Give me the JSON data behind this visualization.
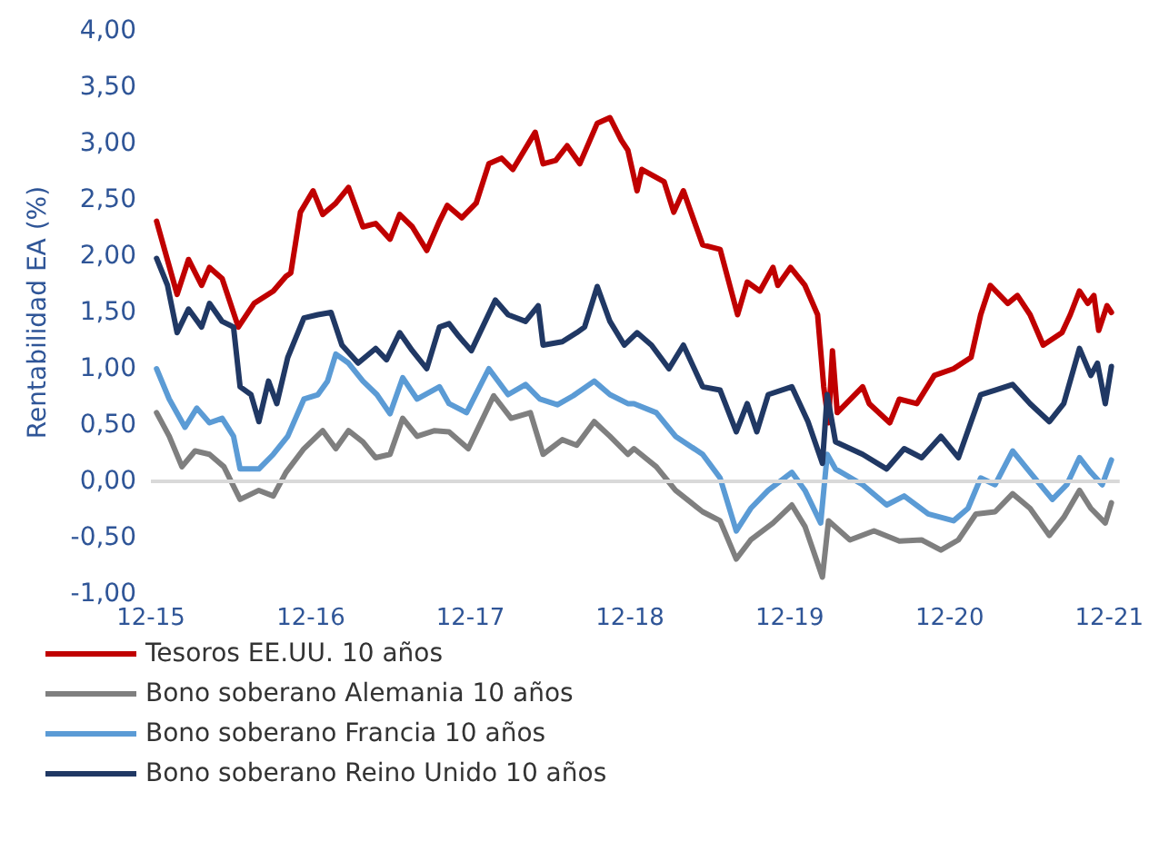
{
  "chart_data": {
    "type": "line",
    "ylabel": "Rentabilidad EA (%)",
    "legend": "bottom",
    "line_style": "solid",
    "grid": false,
    "xlim": [
      "2015-12-01",
      "2021-12-25"
    ],
    "xticks": [
      {
        "value": "2015-12-01",
        "label": "12-15"
      },
      {
        "value": "2016-12-01",
        "label": "12-16"
      },
      {
        "value": "2017-12-01",
        "label": "12-17"
      },
      {
        "value": "2018-12-01",
        "label": "12-18"
      },
      {
        "value": "2019-12-01",
        "label": "12-19"
      },
      {
        "value": "2020-12-01",
        "label": "12-20"
      },
      {
        "value": "2021-12-01",
        "label": "12-21"
      }
    ],
    "ylim": [
      -1,
      4
    ],
    "yticks": [
      {
        "value": -1,
        "label": "-1,00"
      },
      {
        "value": -0.5,
        "label": "-0,50"
      },
      {
        "value": 0,
        "label": "0,00"
      },
      {
        "value": 0.5,
        "label": "0,50"
      },
      {
        "value": 1,
        "label": "1,00"
      },
      {
        "value": 1.5,
        "label": "1,50"
      },
      {
        "value": 2,
        "label": "2,00"
      },
      {
        "value": 2.5,
        "label": "2,50"
      },
      {
        "value": 3,
        "label": "3,00"
      },
      {
        "value": 3.5,
        "label": "3,50"
      },
      {
        "value": 4,
        "label": "4,00"
      }
    ],
    "ref_lines": [
      {
        "axis": "y",
        "value": 0,
        "label": null,
        "color": "#d9d9d9"
      }
    ],
    "series": [
      {
        "name": "Tesoros EE.UU. 10 años",
        "color": "#c00000",
        "x": [
          "2015-12-14",
          "2016-01-30",
          "2016-02-25",
          "2016-03-26",
          "2016-04-13",
          "2016-05-12",
          "2016-06-18",
          "2016-07-24",
          "2016-09-06",
          "2016-10-05",
          "2016-10-16",
          "2016-11-07",
          "2016-12-06",
          "2016-12-28",
          "2017-01-27",
          "2017-02-25",
          "2017-03-30",
          "2017-04-28",
          "2017-05-31",
          "2017-06-22",
          "2017-07-21",
          "2017-08-23",
          "2017-09-21",
          "2017-10-09",
          "2017-11-11",
          "2017-12-14",
          "2018-01-12",
          "2018-02-10",
          "2018-03-08",
          "2018-04-28",
          "2018-05-16",
          "2018-06-14",
          "2018-07-10",
          "2018-08-08",
          "2018-09-17",
          "2018-10-16",
          "2018-11-11",
          "2018-11-26",
          "2018-12-17",
          "2018-12-28",
          "2019-02-17",
          "2019-03-11",
          "2019-04-02",
          "2019-05-16",
          "2019-06-25",
          "2019-08-04",
          "2019-08-26",
          "2019-09-24",
          "2019-10-24",
          "2019-11-04",
          "2019-12-03",
          "2020-01-05",
          "2020-02-03",
          "2020-02-17",
          "2020-02-28",
          "2020-03-08",
          "2020-03-19",
          "2020-05-16",
          "2020-05-31",
          "2020-07-17",
          "2020-08-08",
          "2020-09-17",
          "2020-10-27",
          "2020-12-10",
          "2021-01-19",
          "2021-02-10",
          "2021-03-04",
          "2021-04-13",
          "2021-05-05",
          "2021-06-03",
          "2021-07-03",
          "2021-08-15",
          "2021-09-03",
          "2021-09-24",
          "2021-10-13",
          "2021-10-27",
          "2021-11-07",
          "2021-11-26",
          "2021-12-06"
        ],
        "values": [
          2.31,
          1.66,
          1.97,
          1.74,
          1.9,
          1.8,
          1.37,
          1.58,
          1.69,
          1.82,
          1.85,
          2.39,
          2.58,
          2.37,
          2.47,
          2.61,
          2.26,
          2.29,
          2.15,
          2.37,
          2.26,
          2.05,
          2.31,
          2.45,
          2.34,
          2.47,
          2.82,
          2.87,
          2.77,
          3.1,
          2.82,
          2.85,
          2.98,
          2.82,
          3.18,
          3.23,
          3.03,
          2.94,
          2.58,
          2.77,
          2.66,
          2.39,
          2.58,
          2.1,
          2.06,
          1.48,
          1.77,
          1.69,
          1.9,
          1.74,
          1.9,
          1.74,
          1.48,
          0.84,
          0.52,
          1.16,
          0.61,
          0.84,
          0.69,
          0.52,
          0.73,
          0.69,
          0.94,
          1.0,
          1.1,
          1.48,
          1.74,
          1.58,
          1.65,
          1.48,
          1.21,
          1.32,
          1.48,
          1.69,
          1.58,
          1.65,
          1.34,
          1.56,
          1.5
        ]
      },
      {
        "name": "Bono soberano Alemania 10 años",
        "color": "#7f7f7f",
        "x": [
          "2015-12-14",
          "2016-01-12",
          "2016-02-10",
          "2016-03-11",
          "2016-04-13",
          "2016-05-16",
          "2016-06-22",
          "2016-08-04",
          "2016-09-06",
          "2016-10-05",
          "2016-11-15",
          "2016-12-28",
          "2017-01-27",
          "2017-02-25",
          "2017-03-30",
          "2017-04-28",
          "2017-05-31",
          "2017-06-29",
          "2017-08-01",
          "2017-09-10",
          "2017-10-13",
          "2017-11-26",
          "2018-01-23",
          "2018-03-04",
          "2018-04-17",
          "2018-05-16",
          "2018-06-29",
          "2018-08-01",
          "2018-09-10",
          "2018-10-16",
          "2018-11-26",
          "2018-12-10",
          "2019-01-30",
          "2019-03-15",
          "2019-05-16",
          "2019-06-25",
          "2019-08-01",
          "2019-09-03",
          "2019-10-24",
          "2019-12-06",
          "2020-01-05",
          "2020-02-14",
          "2020-02-28",
          "2020-04-17",
          "2020-06-11",
          "2020-08-08",
          "2020-09-28",
          "2020-11-11",
          "2020-12-21",
          "2021-01-30",
          "2021-03-15",
          "2021-04-24",
          "2021-06-03",
          "2021-07-17",
          "2021-08-19",
          "2021-09-24",
          "2021-10-20",
          "2021-11-22",
          "2021-12-06"
        ],
        "values": [
          0.61,
          0.4,
          0.13,
          0.27,
          0.24,
          0.13,
          -0.16,
          -0.08,
          -0.13,
          0.08,
          0.29,
          0.45,
          0.29,
          0.45,
          0.35,
          0.21,
          0.24,
          0.56,
          0.4,
          0.45,
          0.44,
          0.29,
          0.76,
          0.56,
          0.61,
          0.24,
          0.37,
          0.32,
          0.53,
          0.4,
          0.24,
          0.29,
          0.13,
          -0.08,
          -0.27,
          -0.35,
          -0.69,
          -0.52,
          -0.37,
          -0.21,
          -0.4,
          -0.85,
          -0.35,
          -0.52,
          -0.44,
          -0.53,
          -0.52,
          -0.61,
          -0.52,
          -0.29,
          -0.27,
          -0.11,
          -0.24,
          -0.48,
          -0.32,
          -0.08,
          -0.24,
          -0.37,
          -0.19
        ]
      },
      {
        "name": "Bono soberano Francia 10 años",
        "color": "#5b9bd5",
        "x": [
          "2015-12-14",
          "2016-01-12",
          "2016-02-17",
          "2016-03-15",
          "2016-04-13",
          "2016-05-12",
          "2016-06-07",
          "2016-06-22",
          "2016-08-04",
          "2016-09-06",
          "2016-10-09",
          "2016-11-15",
          "2016-12-17",
          "2017-01-08",
          "2017-01-27",
          "2017-02-25",
          "2017-03-30",
          "2017-05-01",
          "2017-05-31",
          "2017-06-29",
          "2017-08-01",
          "2017-09-21",
          "2017-10-13",
          "2017-11-22",
          "2018-01-12",
          "2018-02-25",
          "2018-04-06",
          "2018-05-09",
          "2018-06-18",
          "2018-07-24",
          "2018-09-10",
          "2018-10-16",
          "2018-11-26",
          "2018-12-10",
          "2019-01-30",
          "2019-03-15",
          "2019-05-16",
          "2019-06-25",
          "2019-08-01",
          "2019-09-03",
          "2019-10-13",
          "2019-12-06",
          "2020-01-05",
          "2020-02-10",
          "2020-02-25",
          "2020-03-15",
          "2020-05-16",
          "2020-07-10",
          "2020-08-19",
          "2020-10-13",
          "2020-12-10",
          "2021-01-12",
          "2021-02-10",
          "2021-03-15",
          "2021-04-24",
          "2021-06-03",
          "2021-07-24",
          "2021-08-26",
          "2021-09-24",
          "2021-10-20",
          "2021-11-15",
          "2021-12-06"
        ],
        "values": [
          1.0,
          0.73,
          0.48,
          0.65,
          0.52,
          0.56,
          0.4,
          0.11,
          0.11,
          0.24,
          0.4,
          0.73,
          0.77,
          0.89,
          1.13,
          1.05,
          0.89,
          0.77,
          0.6,
          0.92,
          0.73,
          0.84,
          0.69,
          0.61,
          1.0,
          0.77,
          0.86,
          0.73,
          0.68,
          0.76,
          0.89,
          0.77,
          0.69,
          0.69,
          0.61,
          0.4,
          0.24,
          0.03,
          -0.44,
          -0.24,
          -0.08,
          0.08,
          -0.08,
          -0.37,
          0.24,
          0.11,
          -0.03,
          -0.21,
          -0.13,
          -0.29,
          -0.35,
          -0.24,
          0.03,
          -0.03,
          0.27,
          0.08,
          -0.16,
          -0.03,
          0.21,
          0.08,
          -0.03,
          0.19
        ]
      },
      {
        "name": "Bono soberano Reino Unido 10 años",
        "color": "#203864",
        "x": [
          "2015-12-14",
          "2016-01-08",
          "2016-01-30",
          "2016-02-25",
          "2016-03-26",
          "2016-04-13",
          "2016-05-12",
          "2016-06-07",
          "2016-06-22",
          "2016-07-17",
          "2016-08-04",
          "2016-08-26",
          "2016-09-14",
          "2016-10-09",
          "2016-11-15",
          "2016-12-17",
          "2017-01-16",
          "2017-02-10",
          "2017-03-19",
          "2017-04-28",
          "2017-05-23",
          "2017-06-22",
          "2017-07-21",
          "2017-08-23",
          "2017-09-21",
          "2017-10-13",
          "2017-11-04",
          "2017-12-03",
          "2018-01-27",
          "2018-02-25",
          "2018-04-06",
          "2018-05-05",
          "2018-05-16",
          "2018-06-29",
          "2018-08-01",
          "2018-08-19",
          "2018-09-17",
          "2018-10-16",
          "2018-11-18",
          "2018-12-17",
          "2019-01-19",
          "2019-02-28",
          "2019-04-02",
          "2019-05-16",
          "2019-06-25",
          "2019-08-01",
          "2019-08-26",
          "2019-09-17",
          "2019-10-13",
          "2019-12-06",
          "2020-01-12",
          "2020-02-14",
          "2020-02-25",
          "2020-03-15",
          "2020-05-16",
          "2020-07-10",
          "2020-08-19",
          "2020-09-28",
          "2020-11-11",
          "2020-12-21",
          "2021-02-10",
          "2021-03-15",
          "2021-04-24",
          "2021-06-03",
          "2021-07-17",
          "2021-08-19",
          "2021-09-24",
          "2021-10-20",
          "2021-11-04",
          "2021-11-22",
          "2021-12-06"
        ],
        "values": [
          1.98,
          1.74,
          1.32,
          1.53,
          1.37,
          1.58,
          1.42,
          1.37,
          0.84,
          0.77,
          0.53,
          0.89,
          0.69,
          1.1,
          1.45,
          1.48,
          1.5,
          1.21,
          1.05,
          1.18,
          1.08,
          1.32,
          1.16,
          1.0,
          1.37,
          1.4,
          1.29,
          1.16,
          1.61,
          1.48,
          1.42,
          1.56,
          1.21,
          1.24,
          1.32,
          1.37,
          1.73,
          1.42,
          1.21,
          1.32,
          1.21,
          1.0,
          1.21,
          0.84,
          0.81,
          0.44,
          0.69,
          0.44,
          0.77,
          0.84,
          0.53,
          0.16,
          0.77,
          0.35,
          0.24,
          0.11,
          0.29,
          0.21,
          0.4,
          0.21,
          0.77,
          0.81,
          0.86,
          0.69,
          0.53,
          0.69,
          1.18,
          0.94,
          1.05,
          0.69,
          1.02
        ]
      }
    ]
  }
}
